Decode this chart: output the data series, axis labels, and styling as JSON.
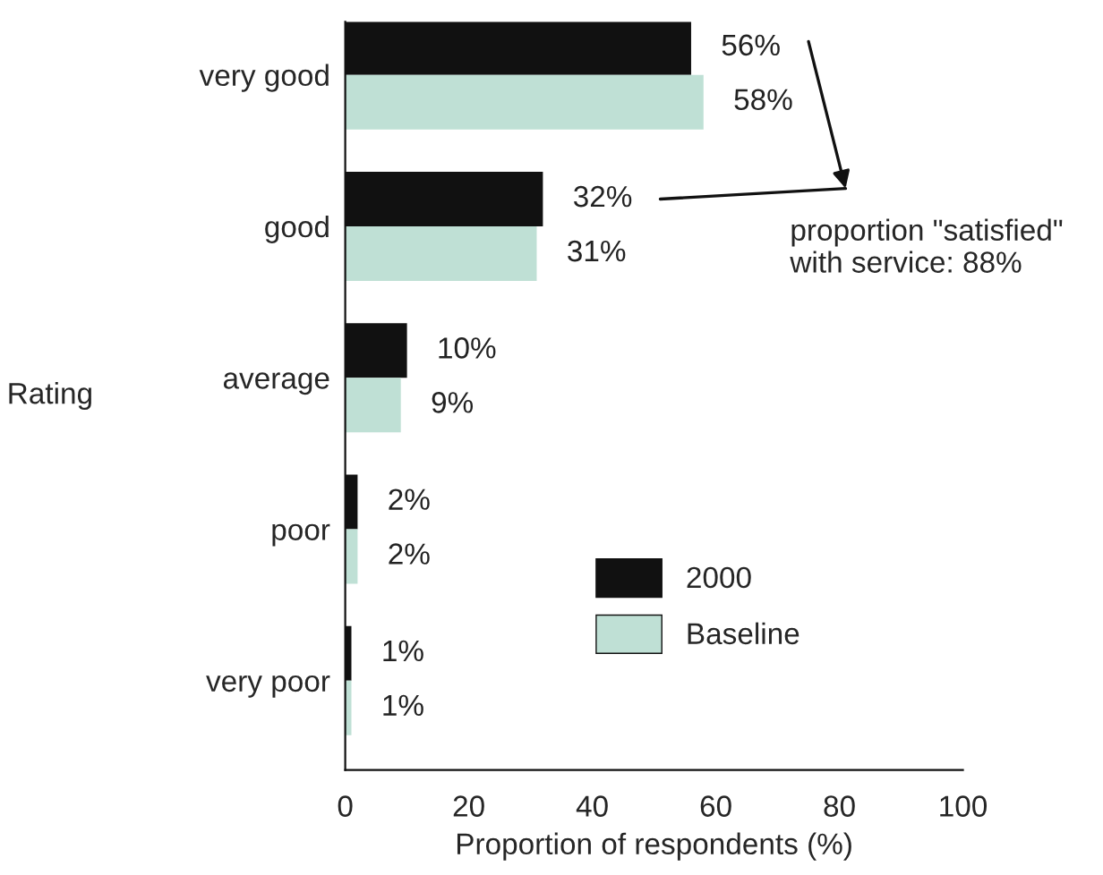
{
  "chart_data": {
    "type": "bar",
    "orientation": "horizontal",
    "ylabel": "Rating",
    "xlabel": "Proportion of respondents (%)",
    "categories": [
      "very good",
      "good",
      "average",
      "poor",
      "very poor"
    ],
    "series": [
      {
        "name": "2000",
        "color": "#111111",
        "values": [
          56,
          32,
          10,
          2,
          1
        ],
        "value_labels": [
          "56%",
          "32%",
          "10%",
          "2%",
          "1%"
        ]
      },
      {
        "name": "Baseline",
        "color": "#bfe0d5",
        "values": [
          58,
          31,
          9,
          2,
          1
        ],
        "value_labels": [
          "58%",
          "31%",
          "9%",
          "2%",
          "1%"
        ]
      }
    ],
    "xlim": [
      0,
      100
    ],
    "xticks": [
      0,
      20,
      40,
      60,
      80,
      100
    ],
    "grid": false,
    "legend": "bottom right",
    "annotations": [
      "proportion \"satisfied\"\nwith service: 88%"
    ]
  }
}
